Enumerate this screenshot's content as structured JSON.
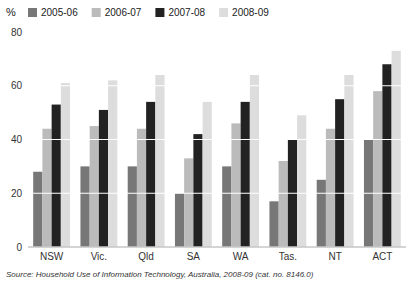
{
  "chart_data": {
    "type": "bar",
    "ylabel": "%",
    "annotations": [
      "Source: Household Use of Information Technology, Australia, 2008-09 (cat. no. 8146.0)"
    ],
    "categories": [
      "NSW",
      "Vic.",
      "Qld",
      "SA",
      "WA",
      "Tas.",
      "NT",
      "ACT"
    ],
    "series": [
      {
        "name": "2005-06",
        "color": "#777777",
        "values": [
          28,
          30,
          30,
          20,
          30,
          17,
          25,
          40
        ]
      },
      {
        "name": "2006-07",
        "color": "#bbbbbb",
        "values": [
          44,
          45,
          44,
          33,
          46,
          32,
          44,
          58
        ]
      },
      {
        "name": "2007-08",
        "color": "#222222",
        "values": [
          53,
          51,
          54,
          42,
          54,
          40,
          55,
          68
        ]
      },
      {
        "name": "2008-09",
        "color": "#dddddd",
        "values": [
          61,
          62,
          64,
          54,
          64,
          49,
          64,
          73
        ]
      }
    ],
    "ylim": [
      0,
      80
    ],
    "yticks": [
      0,
      20,
      40,
      60,
      80
    ],
    "grid": true,
    "legend": "upper-left"
  }
}
